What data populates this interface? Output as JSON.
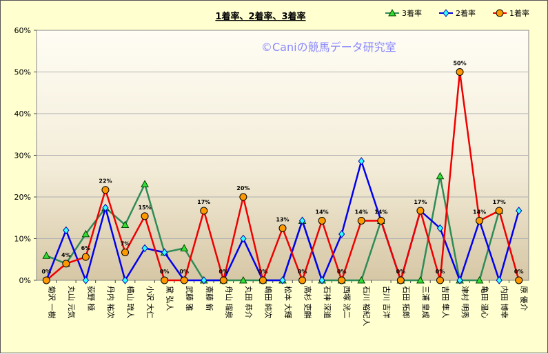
{
  "chart_data": {
    "type": "line",
    "title": "1着率、2着率、3着率",
    "watermark": "©Caniの競馬データ研究室",
    "legend_position": "top-right",
    "y_ticks": [
      "0%",
      "10%",
      "20%",
      "30%",
      "40%",
      "50%",
      "60%"
    ],
    "ylim": [
      0,
      60
    ],
    "categories": [
      "菊沢 一樹",
      "丸山 元気",
      "荻野 極",
      "丹内 祐次",
      "横山 琉人",
      "小沢 大仁",
      "黛 弘人",
      "武藤 雅",
      "斎藤 新",
      "舟山 瑠泉",
      "丸田 恭介",
      "嶋田 純次",
      "松本 大輝",
      "高杉 吏麒",
      "石神 深道",
      "西塚 洸二",
      "石川 裕紀人",
      "古川 吉洋",
      "石田 拓郎",
      "三浦 皇成",
      "吉田 隼人",
      "津村 明秀",
      "亀田 温心",
      "内田 博幸",
      "原 優介"
    ],
    "series": [
      {
        "name": "3着率",
        "color": "#2e8b57",
        "marker": "triangle",
        "values": [
          5.9,
          4.0,
          11.1,
          17.4,
          13.3,
          23.1,
          6.7,
          7.7,
          0,
          0,
          0,
          0,
          0,
          14.3,
          0,
          0,
          0,
          14.3,
          0,
          0,
          25.0,
          0,
          0,
          16.7,
          null
        ]
      },
      {
        "name": "2着率",
        "color": "#0000ee",
        "marker": "diamond",
        "values": [
          0,
          12.0,
          0,
          17.4,
          0,
          7.7,
          6.7,
          0,
          0,
          0,
          10.0,
          0,
          0,
          14.3,
          0,
          11.1,
          28.6,
          14.3,
          0,
          16.7,
          12.5,
          0,
          14.3,
          0,
          16.7
        ]
      },
      {
        "name": "1着率",
        "color": "#ee0000",
        "marker": "circle",
        "values": [
          0,
          4.0,
          5.6,
          21.7,
          6.7,
          15.4,
          0,
          0,
          16.7,
          0,
          20.0,
          0,
          12.5,
          0,
          14.3,
          0,
          14.3,
          14.3,
          0,
          16.7,
          0,
          50.0,
          14.3,
          16.7,
          0
        ]
      }
    ],
    "data_labels": [
      "0%",
      "4%",
      "6%",
      "22%",
      "7%",
      "15%",
      "0%",
      "0%",
      "17%",
      "0%",
      "20%",
      "0%",
      "13%",
      "0%",
      "14%",
      "0%",
      "14%",
      "14%",
      "0%",
      "17%",
      "0%",
      "50%",
      "14%",
      "17%",
      "0%"
    ]
  }
}
